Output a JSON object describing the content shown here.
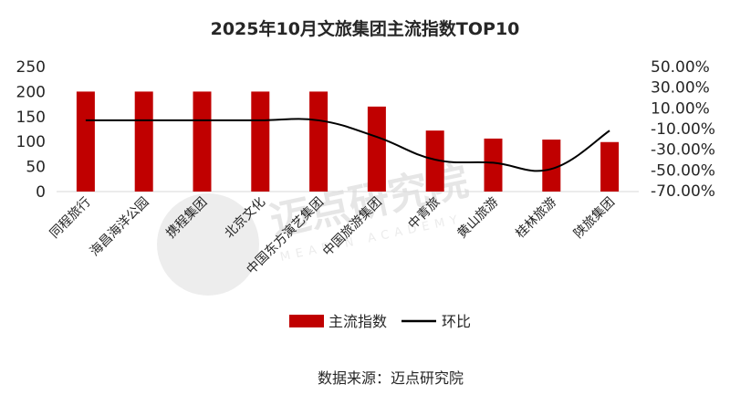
{
  "chart_data": {
    "type": "bar",
    "title": "2025年10月文旅集团主流指数TOP10",
    "categories": [
      "同程旅行",
      "海昌海洋公园",
      "携程集团",
      "北京文化",
      "中国东方演艺集团",
      "中国旅游集团",
      "中青旅",
      "黄山旅游",
      "桂林旅游",
      "陕旅集团"
    ],
    "series": [
      {
        "name": "主流指数",
        "type": "bar",
        "axis": "left",
        "color": "#C00000",
        "values": [
          200,
          200,
          200,
          200,
          200,
          170,
          122,
          106,
          104,
          99
        ]
      },
      {
        "name": "环比",
        "type": "line",
        "axis": "right",
        "color": "#000000",
        "values": [
          -0.02,
          -0.02,
          -0.02,
          -0.02,
          -0.02,
          -0.18,
          -0.4,
          -0.43,
          -0.49,
          -0.12
        ]
      }
    ],
    "y_left": {
      "ylim": [
        0,
        250
      ],
      "ticks": [
        "0",
        "50",
        "100",
        "150",
        "200",
        "250"
      ]
    },
    "y_right": {
      "ylim": [
        -0.7,
        0.5
      ],
      "ticks": [
        "-70.00%",
        "-50.00%",
        "-30.00%",
        "-10.00%",
        "10.00%",
        "30.00%",
        "50.00%"
      ]
    },
    "legend": {
      "position": "bottom",
      "items": [
        "主流指数",
        "环比"
      ]
    },
    "source": "数据来源：迈点研究院",
    "watermark": {
      "text": "迈点研究院",
      "subtext": "MEADIN ACADEMY"
    }
  }
}
